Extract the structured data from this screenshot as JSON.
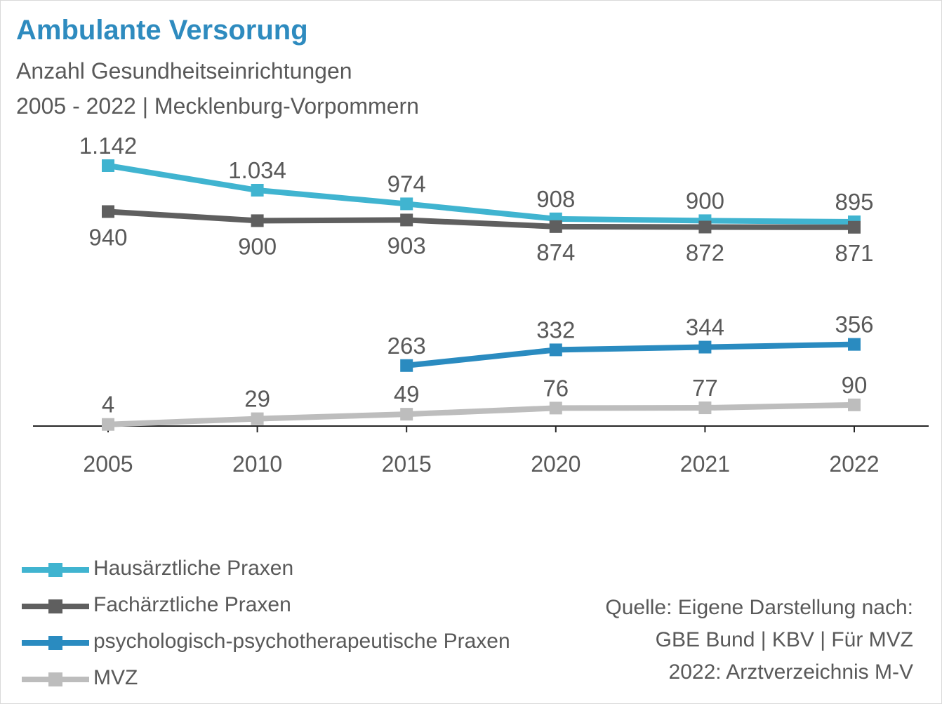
{
  "title": "Ambulante Versorung",
  "subtitle_1": "Anzahl Gesundheitseinrichtungen",
  "subtitle_2": "2005 - 2022 | Mecklenburg-Vorpommern",
  "source_lines": [
    "Quelle: Eigene Darstellung nach:",
    "GBE Bund | KBV | Für MVZ",
    "2022: Arztverzeichnis M-V"
  ],
  "chart_data": {
    "type": "line",
    "categories": [
      "2005",
      "2010",
      "2015",
      "2020",
      "2021",
      "2022"
    ],
    "ylim": [
      0,
      1142
    ],
    "grid": false,
    "legend_position": "bottom-left",
    "series": [
      {
        "name": "Hausärztliche Praxen",
        "color": "#40b4d0",
        "values": [
          1142,
          1034,
          974,
          908,
          900,
          895
        ],
        "labels": [
          "1.142",
          "1.034",
          "974",
          "908",
          "900",
          "895"
        ],
        "label_position": "above"
      },
      {
        "name": "Fachärztliche Praxen",
        "color": "#5f5f5f",
        "values": [
          940,
          900,
          903,
          874,
          872,
          871
        ],
        "labels": [
          "940",
          "900",
          "903",
          "874",
          "872",
          "871"
        ],
        "label_position": "below"
      },
      {
        "name": "psychologisch-psychotherapeutische Praxen",
        "color": "#2a8bc0",
        "values": [
          null,
          null,
          263,
          332,
          344,
          356
        ],
        "labels": [
          null,
          null,
          "263",
          "332",
          "344",
          "356"
        ],
        "label_position": "above"
      },
      {
        "name": "MVZ",
        "color": "#bdbdbd",
        "values": [
          4,
          29,
          49,
          76,
          77,
          90
        ],
        "labels": [
          "4",
          "29",
          "49",
          "76",
          "77",
          "90"
        ],
        "label_position": "above"
      }
    ]
  }
}
